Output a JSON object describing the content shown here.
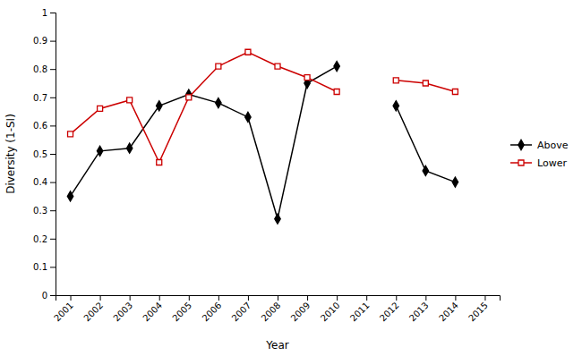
{
  "chart_data": {
    "type": "line",
    "xlabel": "Year",
    "ylabel": "Diversity (1-SI)",
    "x": [
      2001,
      2002,
      2003,
      2004,
      2005,
      2006,
      2007,
      2008,
      2009,
      2010,
      2011,
      2012,
      2013,
      2014
    ],
    "series": [
      {
        "name": "Above",
        "color": "#000000",
        "marker": "diamond",
        "line_style": "solid",
        "values": [
          0.35,
          0.51,
          0.52,
          0.67,
          0.71,
          0.68,
          0.63,
          0.27,
          0.75,
          0.81,
          null,
          0.67,
          0.44,
          0.4
        ]
      },
      {
        "name": "Lower",
        "color": "#cc0000",
        "marker": "open-square",
        "line_style": "solid",
        "values": [
          0.57,
          0.66,
          0.69,
          0.47,
          0.7,
          0.81,
          0.86,
          0.81,
          0.77,
          0.72,
          null,
          0.76,
          0.75,
          0.72
        ]
      }
    ],
    "xlim": [
      2000.5,
      2015.5
    ],
    "xticks": [
      2001,
      2002,
      2003,
      2004,
      2005,
      2006,
      2007,
      2008,
      2009,
      2010,
      2011,
      2012,
      2013,
      2014,
      2015
    ],
    "ylim": [
      0,
      1
    ],
    "yticks": [
      0,
      0.1,
      0.2,
      0.3,
      0.4,
      0.5,
      0.6,
      0.7,
      0.8,
      0.9,
      1
    ],
    "grid": false,
    "legend": "right"
  }
}
